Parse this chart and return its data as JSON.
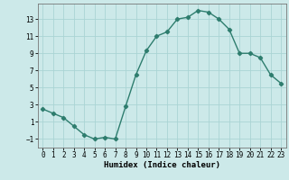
{
  "x": [
    0,
    1,
    2,
    3,
    4,
    5,
    6,
    7,
    8,
    9,
    10,
    11,
    12,
    13,
    14,
    15,
    16,
    17,
    18,
    19,
    20,
    21,
    22,
    23
  ],
  "y": [
    2.5,
    2.0,
    1.5,
    0.5,
    -0.5,
    -1.0,
    -0.8,
    -1.0,
    2.8,
    6.5,
    9.3,
    11.0,
    11.5,
    13.0,
    13.2,
    14.0,
    13.8,
    13.0,
    11.8,
    9.0,
    9.0,
    8.5,
    6.5,
    5.5
  ],
  "line_color": "#2e7d6e",
  "marker": "D",
  "marker_size": 2.2,
  "bg_color": "#cce9e9",
  "grid_color": "#aad4d4",
  "xlabel": "Humidex (Indice chaleur)",
  "xlim": [
    -0.5,
    23.5
  ],
  "ylim": [
    -2.0,
    14.8
  ],
  "yticks": [
    -1,
    1,
    3,
    5,
    7,
    9,
    11,
    13
  ],
  "xticks": [
    0,
    1,
    2,
    3,
    4,
    5,
    6,
    7,
    8,
    9,
    10,
    11,
    12,
    13,
    14,
    15,
    16,
    17,
    18,
    19,
    20,
    21,
    22,
    23
  ],
  "tick_fontsize": 5.5,
  "xlabel_fontsize": 6.5,
  "linewidth": 1.0
}
